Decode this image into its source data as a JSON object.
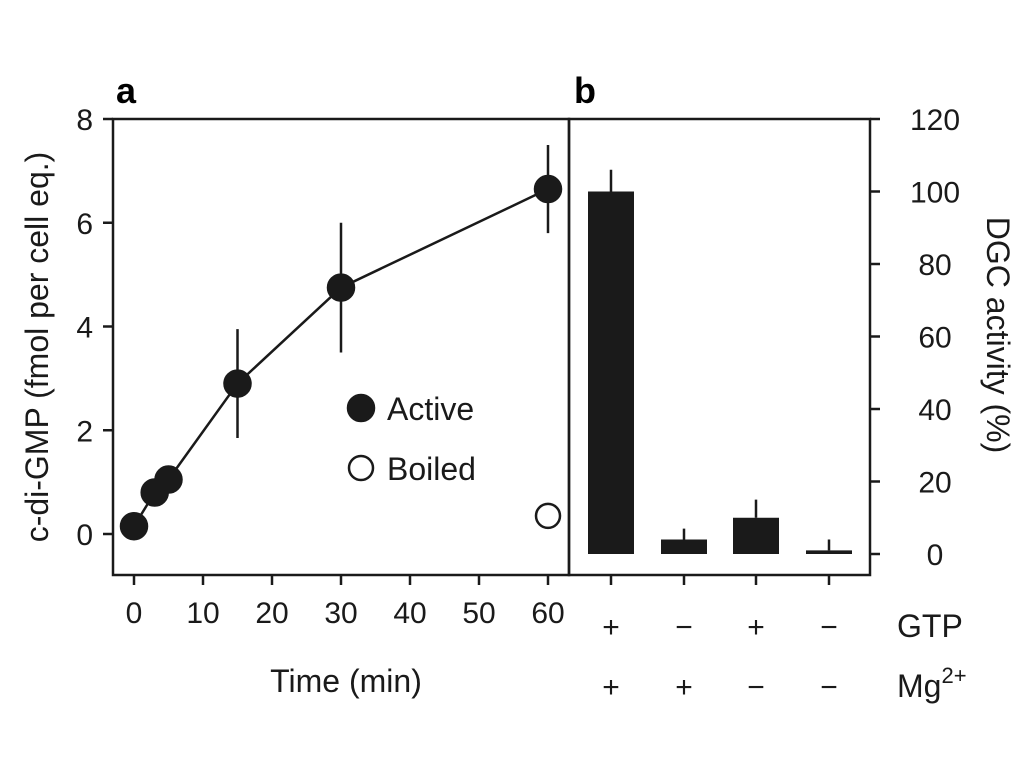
{
  "chart_data": [
    {
      "panel": "a",
      "type": "scatter",
      "xlabel": "Time (min)",
      "ylabel": "c-di-GMP (fmol per cell eq.)",
      "xlim": [
        -2,
        62
      ],
      "ylim": [
        -0.8,
        8
      ],
      "x_ticks": [
        0,
        10,
        20,
        30,
        40,
        50,
        60
      ],
      "y_ticks": [
        0,
        2,
        4,
        6,
        8
      ],
      "grid": false,
      "legend_placement": "center",
      "series": [
        {
          "name": "Active",
          "marker": "filled-circle",
          "connected": true,
          "points": [
            {
              "x": 0,
              "y": 0.15,
              "err": 0
            },
            {
              "x": 3,
              "y": 0.8,
              "err": 0
            },
            {
              "x": 5,
              "y": 1.05,
              "err": 0
            },
            {
              "x": 15,
              "y": 2.9,
              "err": 1.05
            },
            {
              "x": 30,
              "y": 4.75,
              "err": 1.25
            },
            {
              "x": 60,
              "y": 6.65,
              "err": 0.85
            }
          ]
        },
        {
          "name": "Boiled",
          "marker": "open-circle",
          "connected": false,
          "points": [
            {
              "x": 60,
              "y": 0.35,
              "err": 0
            }
          ]
        }
      ]
    },
    {
      "panel": "b",
      "type": "bar",
      "ylabel": "DGC activity (%)",
      "ylim": [
        -5,
        120
      ],
      "y_ticks": [
        0,
        20,
        40,
        60,
        80,
        100,
        120
      ],
      "y_axis_side": "right",
      "grid": false,
      "condition_rows": [
        {
          "label": "GTP",
          "values": [
            "+",
            "−",
            "+",
            "−"
          ]
        },
        {
          "label": "Mg",
          "superscript": "2+",
          "values": [
            "+",
            "+",
            "−",
            "−"
          ]
        }
      ],
      "values": [
        100,
        4,
        10,
        1
      ],
      "errors": [
        6,
        3,
        5,
        3
      ]
    }
  ]
}
